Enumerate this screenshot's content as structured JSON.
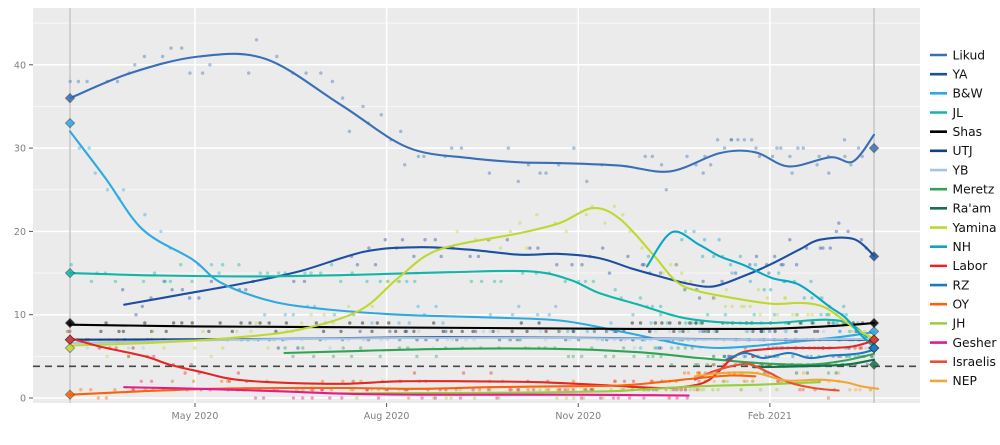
{
  "chart_data": {
    "type": "scatter+smooth",
    "title": "",
    "xlabel": "",
    "ylabel": "",
    "x_axis": {
      "unit": "date",
      "ticks": [
        {
          "label": "May 2020",
          "day": 60
        },
        {
          "label": "Aug 2020",
          "day": 152
        },
        {
          "label": "Nov 2020",
          "day": 244
        },
        {
          "label": "Feb 2021",
          "day": 336
        }
      ],
      "domain_days": [
        -18,
        409
      ],
      "election_marker_days": [
        0,
        386
      ]
    },
    "y_axis": {
      "ticks": [
        0,
        10,
        20,
        30,
        40
      ],
      "minor_ticks": [
        5,
        15,
        25,
        35,
        45
      ],
      "domain": [
        -0.6,
        46.8
      ],
      "grid": true
    },
    "threshold_line": {
      "value": 3.8,
      "style": "dashed",
      "color": "#474747"
    },
    "legend_position": "right",
    "panel_bg": "#ebebeb",
    "grid_color": "#ffffff",
    "election_line_color": "#c9c9c9",
    "axis_text_color": "#7f7f7f",
    "series": [
      {
        "id": "likud",
        "name": "Likud",
        "color": "#3a6fb7",
        "spread": 2.2,
        "points": [
          [
            0,
            36
          ],
          [
            29,
            39
          ],
          [
            62,
            41
          ],
          [
            94,
            40.7
          ],
          [
            130,
            35.2
          ],
          [
            162,
            30.1
          ],
          [
            192,
            28.8
          ],
          [
            216,
            28.3
          ],
          [
            235,
            28.2
          ],
          [
            264,
            27.9
          ],
          [
            288,
            27.2
          ],
          [
            312,
            29.4
          ],
          [
            329,
            29.5
          ],
          [
            345,
            27.8
          ],
          [
            365,
            28.9
          ],
          [
            376,
            28.4
          ],
          [
            386,
            31.6
          ]
        ],
        "result_start": 36,
        "result_end": 30
      },
      {
        "id": "ya",
        "name": "YA",
        "color": "#1d4fa1",
        "spread": 1.6,
        "points": [
          [
            26,
            11.2
          ],
          [
            53,
            12.4
          ],
          [
            82,
            13.7
          ],
          [
            110,
            15.2
          ],
          [
            142,
            17.6
          ],
          [
            168,
            18.1
          ],
          [
            192,
            17.8
          ],
          [
            216,
            17.2
          ],
          [
            235,
            17.3
          ],
          [
            254,
            16.8
          ],
          [
            269,
            15.6
          ],
          [
            283,
            14.6
          ],
          [
            297,
            13.7
          ],
          [
            309,
            13.4
          ],
          [
            323,
            14.6
          ],
          [
            336,
            16
          ],
          [
            350,
            17.8
          ],
          [
            360,
            19
          ],
          [
            376,
            19.1
          ],
          [
            386,
            17.1
          ]
        ],
        "result_end": 17
      },
      {
        "id": "bw",
        "name": "B&W",
        "color": "#2fa9e0",
        "spread": 1.6,
        "points": [
          [
            0,
            32
          ],
          [
            17,
            26.4
          ],
          [
            35,
            20.2
          ],
          [
            59,
            16.6
          ],
          [
            72,
            13.9
          ],
          [
            94,
            11.8
          ],
          [
            117,
            10.8
          ],
          [
            158,
            10
          ],
          [
            197,
            9.7
          ],
          [
            235,
            9.3
          ],
          [
            264,
            8
          ],
          [
            283,
            7
          ],
          [
            297,
            6.3
          ],
          [
            312,
            6
          ],
          [
            331,
            6.3
          ],
          [
            350,
            6.8
          ],
          [
            369,
            7.3
          ],
          [
            386,
            7.9
          ]
        ],
        "result_start": 33,
        "result_end": 8
      },
      {
        "id": "jl",
        "name": "JL",
        "color": "#12b5a7",
        "spread": 1.1,
        "points": [
          [
            0,
            15
          ],
          [
            43,
            14.7
          ],
          [
            91,
            14.6
          ],
          [
            139,
            14.8
          ],
          [
            182,
            15.1
          ],
          [
            221,
            15.2
          ],
          [
            240,
            14.2
          ],
          [
            254,
            12.6
          ],
          [
            273,
            11.2
          ],
          [
            293,
            9.7
          ],
          [
            312,
            9.1
          ],
          [
            337,
            9
          ],
          [
            363,
            9.4
          ],
          [
            376,
            8.7
          ],
          [
            386,
            6.3
          ]
        ],
        "result_start": 15,
        "result_end": 6
      },
      {
        "id": "shas",
        "name": "Shas",
        "color": "#000000",
        "spread": 0.8,
        "points": [
          [
            0,
            8.8
          ],
          [
            60,
            8.6
          ],
          [
            130,
            8.5
          ],
          [
            200,
            8.4
          ],
          [
            270,
            8.3
          ],
          [
            330,
            8.3
          ],
          [
            355,
            8.5
          ],
          [
            376,
            8.8
          ],
          [
            386,
            9
          ]
        ],
        "result_start": 9,
        "result_end": 9
      },
      {
        "id": "utj",
        "name": "UTJ",
        "color": "#16417e",
        "spread": 0.7,
        "points": [
          [
            0,
            7
          ],
          [
            100,
            7.1
          ],
          [
            180,
            7.3
          ],
          [
            260,
            7.2
          ],
          [
            330,
            7
          ],
          [
            386,
            7
          ]
        ],
        "result_start": 7,
        "result_end": 7
      },
      {
        "id": "yb",
        "name": "YB",
        "color": "#a6c5e6",
        "spread": 0.8,
        "points": [
          [
            0,
            6.6
          ],
          [
            80,
            7
          ],
          [
            160,
            7.2
          ],
          [
            240,
            7.2
          ],
          [
            320,
            7
          ],
          [
            386,
            7.1
          ]
        ],
        "result_start": 7,
        "result_end": 7
      },
      {
        "id": "meretz",
        "name": "Meretz",
        "color": "#31a354",
        "spread": 0.9,
        "points": [
          [
            103,
            5.4
          ],
          [
            130,
            5.6
          ],
          [
            180,
            5.9
          ],
          [
            235,
            5.9
          ],
          [
            273,
            5.5
          ],
          [
            302,
            4.8
          ],
          [
            330,
            4.2
          ],
          [
            355,
            4
          ],
          [
            372,
            4.5
          ],
          [
            386,
            5.3
          ]
        ],
        "result_end": 6
      },
      {
        "id": "raam",
        "name": "Ra'am",
        "color": "#176f4b",
        "spread": 0.7,
        "points": [
          [
            328,
            3.7
          ],
          [
            350,
            3.8
          ],
          [
            372,
            4
          ],
          [
            386,
            4.6
          ]
        ],
        "result_end": 4
      },
      {
        "id": "yamina",
        "name": "Yamina",
        "color": "#c0d72f",
        "spread": 1.8,
        "points": [
          [
            0,
            6.3
          ],
          [
            38,
            6.6
          ],
          [
            77,
            7.2
          ],
          [
            110,
            8.2
          ],
          [
            139,
            10.5
          ],
          [
            158,
            14.5
          ],
          [
            177,
            17.8
          ],
          [
            216,
            19.8
          ],
          [
            235,
            21
          ],
          [
            251,
            22.8
          ],
          [
            264,
            21.5
          ],
          [
            280,
            17.2
          ],
          [
            291,
            14
          ],
          [
            302,
            12.8
          ],
          [
            323,
            11.8
          ],
          [
            338,
            11.3
          ],
          [
            352,
            11.4
          ],
          [
            363,
            10.8
          ],
          [
            376,
            8.5
          ],
          [
            386,
            7.1
          ]
        ],
        "result_start": 6,
        "result_end": 7
      },
      {
        "id": "nh",
        "name": "NH",
        "color": "#0aa6c2",
        "spread": 1.7,
        "points": [
          [
            277,
            15.8
          ],
          [
            289,
            19.9
          ],
          [
            302,
            18.4
          ],
          [
            312,
            17
          ],
          [
            323,
            16
          ],
          [
            337,
            14.4
          ],
          [
            350,
            13.6
          ],
          [
            365,
            10.9
          ],
          [
            372,
            9.7
          ],
          [
            380,
            7.5
          ],
          [
            386,
            6.1
          ]
        ],
        "result_end": 6
      },
      {
        "id": "labor",
        "name": "Labor",
        "color": "#e22726",
        "spread": 0.9,
        "points": [
          [
            0,
            7.2
          ],
          [
            14,
            6.2
          ],
          [
            36,
            5
          ],
          [
            48,
            4
          ],
          [
            65,
            3
          ],
          [
            77,
            2.3
          ],
          [
            96,
            1.9
          ],
          [
            130,
            1.7
          ],
          [
            158,
            2
          ],
          [
            192,
            2
          ],
          [
            225,
            1.9
          ],
          [
            259,
            1.5
          ],
          [
            283,
            1.2
          ],
          [
            297,
            1.4
          ],
          [
            307,
            2.2
          ],
          [
            317,
            4.6
          ],
          [
            323,
            5.5
          ],
          [
            331,
            5.8
          ],
          [
            345,
            6
          ],
          [
            365,
            6
          ],
          [
            376,
            6.2
          ],
          [
            386,
            6.9
          ]
        ],
        "result_start": 7,
        "result_end": 7
      },
      {
        "id": "rz",
        "name": "RZ",
        "color": "#1a7abf",
        "spread": 0.9,
        "points": [
          [
            315,
            4.6
          ],
          [
            324,
            5.4
          ],
          [
            333,
            4.8
          ],
          [
            345,
            5.4
          ],
          [
            355,
            4.8
          ],
          [
            365,
            5.1
          ],
          [
            373,
            5.2
          ],
          [
            380,
            5.4
          ],
          [
            386,
            5.8
          ]
        ],
        "result_end": 6
      },
      {
        "id": "oy",
        "name": "OY",
        "color": "#fb6306",
        "spread": 0.7,
        "points": [
          [
            0,
            0.4
          ],
          [
            34,
            0.8
          ],
          [
            67,
            1.1
          ],
          [
            101,
            1.2
          ],
          [
            134,
            1.2
          ],
          [
            168,
            1.1
          ],
          [
            201,
            1.3
          ],
          [
            235,
            1.4
          ],
          [
            264,
            1.5
          ],
          [
            283,
            1.9
          ],
          [
            302,
            2.4
          ],
          [
            317,
            2.7
          ],
          [
            329,
            2.6
          ]
        ],
        "result_start": 0.4
      },
      {
        "id": "jh",
        "name": "JH",
        "color": "#97cf3a",
        "spread": 0.6,
        "points": [
          [
            130,
            0.55
          ],
          [
            173,
            0.6
          ],
          [
            216,
            0.65
          ],
          [
            259,
            0.8
          ],
          [
            273,
            1
          ],
          [
            302,
            1.4
          ],
          [
            331,
            1.6
          ],
          [
            350,
            1.8
          ],
          [
            360,
            1.9
          ]
        ]
      },
      {
        "id": "gesher",
        "name": "Gesher",
        "color": "#e31c8d",
        "spread": 0.6,
        "points": [
          [
            26,
            1.3
          ],
          [
            62,
            1.1
          ],
          [
            101,
            0.8
          ],
          [
            134,
            0.5
          ],
          [
            168,
            0.4
          ],
          [
            206,
            0.4
          ],
          [
            240,
            0.4
          ],
          [
            269,
            0.35
          ],
          [
            297,
            0.3
          ]
        ]
      },
      {
        "id": "israelis",
        "name": "Israelis",
        "color": "#ea4f30",
        "spread": 0.8,
        "points": [
          [
            300,
            2.2
          ],
          [
            309,
            3.2
          ],
          [
            321,
            4
          ],
          [
            327,
            4
          ],
          [
            336,
            3
          ],
          [
            345,
            1.9
          ],
          [
            357,
            1.2
          ],
          [
            369,
            0.9
          ]
        ]
      },
      {
        "id": "nep",
        "name": "NEP",
        "color": "#f0a73a",
        "spread": 0.7,
        "points": [
          [
            300,
            2.6
          ],
          [
            313,
            3
          ],
          [
            329,
            3
          ],
          [
            344,
            2.1
          ],
          [
            360,
            2.2
          ],
          [
            372,
            1.9
          ],
          [
            380,
            1.4
          ],
          [
            388,
            1.1
          ]
        ]
      }
    ]
  },
  "legend": {
    "labels": [
      "Likud",
      "YA",
      "B&W",
      "JL",
      "Shas",
      "UTJ",
      "YB",
      "Meretz",
      "Ra'am",
      "Yamina",
      "NH",
      "Labor",
      "RZ",
      "OY",
      "JH",
      "Gesher",
      "Israelis",
      "NEP"
    ],
    "text_color": "#111111"
  }
}
